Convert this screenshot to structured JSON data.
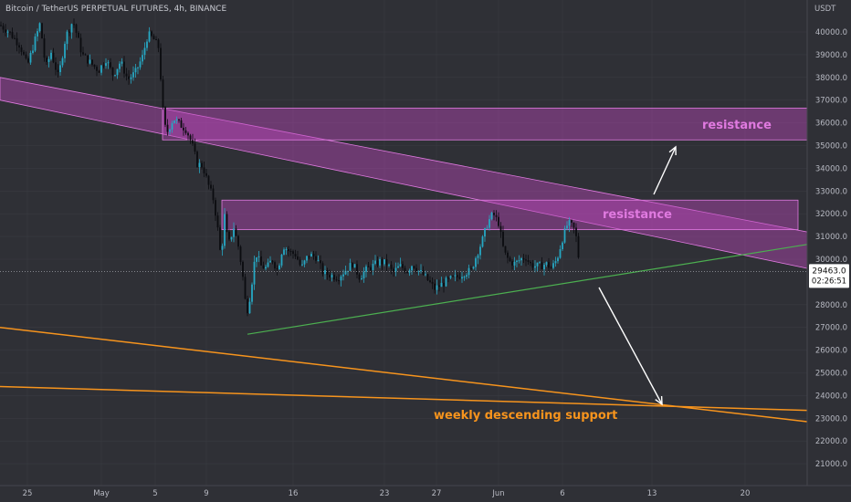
{
  "header": {
    "title": "Bitcoin / TetherUS PERPETUAL FUTURES, 4h, BINANCE"
  },
  "price_axis": {
    "currency": "USDT",
    "labels": [
      "40000.0",
      "39000.0",
      "38000.0",
      "37000.0",
      "36000.0",
      "35000.0",
      "34000.0",
      "33000.0",
      "32000.0",
      "31000.0",
      "30000.0",
      "28000.0",
      "27000.0",
      "26000.0",
      "25000.0",
      "24000.0",
      "23000.0",
      "22000.0",
      "21000.0"
    ],
    "current_price": "29463.0",
    "countdown": "02:26:51"
  },
  "time_axis": {
    "labels": [
      "25",
      "May",
      "5",
      "9",
      "16",
      "23",
      "27",
      "Jun",
      "6",
      "13",
      "20"
    ]
  },
  "colors": {
    "background": "#2f3036",
    "grid": "#3a3b42",
    "up_candle": "#26a8c4",
    "down_candle": "#0b0c10",
    "zone_fill": "#b847b8",
    "zone_border": "#e07ae0",
    "support_line": "#f7941d",
    "trend_line": "#4caf50",
    "arrow": "#ffffff",
    "price_badge": "#ffffff"
  },
  "chart_data": {
    "type": "candlestick",
    "title": "Bitcoin / TetherUS PERPETUAL FUTURES, 4h, BINANCE",
    "timeframe": "4h",
    "ylim": [
      20500,
      41200
    ],
    "y_ticks": [
      40000,
      39000,
      38000,
      37000,
      36000,
      35000,
      34000,
      33000,
      32000,
      31000,
      30000,
      28000,
      27000,
      26000,
      25000,
      24000,
      23000,
      22000,
      21000
    ],
    "x_ticks": [
      "25",
      "May",
      "5",
      "9",
      "16",
      "23",
      "27",
      "Jun",
      "6",
      "13",
      "20"
    ],
    "last_price": 29463.0,
    "price_path": [
      [
        0,
        40300
      ],
      [
        10,
        40000
      ],
      [
        22,
        39400
      ],
      [
        30,
        38500
      ],
      [
        38,
        39600
      ],
      [
        44,
        40400
      ],
      [
        50,
        38400
      ],
      [
        56,
        39100
      ],
      [
        64,
        38000
      ],
      [
        72,
        39800
      ],
      [
        80,
        40500
      ],
      [
        90,
        39000
      ],
      [
        100,
        38600
      ],
      [
        108,
        38300
      ],
      [
        116,
        38800
      ],
      [
        124,
        38100
      ],
      [
        132,
        38700
      ],
      [
        140,
        37900
      ],
      [
        148,
        38200
      ],
      [
        156,
        38900
      ],
      [
        162,
        39900
      ],
      [
        168,
        39700
      ],
      [
        174,
        39300
      ],
      [
        178,
        36700
      ],
      [
        182,
        35500
      ],
      [
        190,
        36200
      ],
      [
        198,
        35900
      ],
      [
        204,
        35700
      ],
      [
        210,
        35100
      ],
      [
        216,
        34200
      ],
      [
        222,
        34100
      ],
      [
        228,
        33300
      ],
      [
        234,
        32600
      ],
      [
        238,
        31500
      ],
      [
        242,
        30000
      ],
      [
        246,
        31900
      ],
      [
        250,
        30600
      ],
      [
        256,
        31400
      ],
      [
        262,
        30400
      ],
      [
        266,
        29200
      ],
      [
        270,
        27600
      ],
      [
        274,
        28400
      ],
      [
        280,
        30300
      ],
      [
        286,
        29700
      ],
      [
        292,
        29600
      ],
      [
        298,
        30000
      ],
      [
        304,
        29500
      ],
      [
        310,
        30600
      ],
      [
        318,
        30300
      ],
      [
        324,
        30200
      ],
      [
        330,
        29600
      ],
      [
        338,
        30200
      ],
      [
        346,
        30100
      ],
      [
        354,
        29400
      ],
      [
        362,
        29300
      ],
      [
        370,
        29200
      ],
      [
        378,
        29500
      ],
      [
        386,
        29800
      ],
      [
        394,
        29200
      ],
      [
        400,
        29500
      ],
      [
        408,
        29700
      ],
      [
        416,
        29900
      ],
      [
        424,
        29800
      ],
      [
        430,
        29400
      ],
      [
        438,
        29700
      ],
      [
        446,
        29500
      ],
      [
        452,
        29800
      ],
      [
        458,
        29500
      ],
      [
        464,
        29300
      ],
      [
        470,
        29000
      ],
      [
        476,
        28700
      ],
      [
        484,
        28900
      ],
      [
        492,
        29100
      ],
      [
        500,
        29200
      ],
      [
        508,
        29400
      ],
      [
        516,
        29500
      ],
      [
        522,
        30200
      ],
      [
        528,
        30800
      ],
      [
        534,
        31600
      ],
      [
        540,
        32000
      ],
      [
        546,
        31600
      ],
      [
        552,
        30300
      ],
      [
        558,
        29900
      ],
      [
        564,
        29800
      ],
      [
        570,
        30000
      ],
      [
        576,
        30100
      ],
      [
        580,
        29800
      ],
      [
        586,
        29700
      ],
      [
        592,
        29700
      ],
      [
        598,
        29800
      ],
      [
        604,
        29600
      ],
      [
        610,
        30000
      ],
      [
        616,
        30900
      ],
      [
        622,
        31600
      ],
      [
        628,
        31400
      ],
      [
        632,
        30800
      ],
      [
        635,
        29463
      ]
    ],
    "zones": [
      {
        "label": "",
        "kind": "descending-channel",
        "top_from": 38000,
        "top_to": 31200,
        "bottom_from": 37000,
        "bottom_to": 29600
      },
      {
        "label": "resistance",
        "kind": "box",
        "from": 35250,
        "to": 36650
      },
      {
        "label": "resistance",
        "kind": "box",
        "from": 31300,
        "to": 32600
      }
    ],
    "lines": [
      {
        "name": "",
        "kind": "ascending-trend",
        "from": 26700,
        "to": 30650
      },
      {
        "name": "weekly descending support",
        "kind": "descending",
        "from": 27000,
        "to": 22850
      },
      {
        "name": "",
        "kind": "descending",
        "from": 24400,
        "to": 23350
      }
    ],
    "annotations": [
      {
        "text": "resistance",
        "zone": 1
      },
      {
        "text": "resistance",
        "zone": 2
      },
      {
        "text": "weekly descending support",
        "line": 1
      }
    ]
  }
}
